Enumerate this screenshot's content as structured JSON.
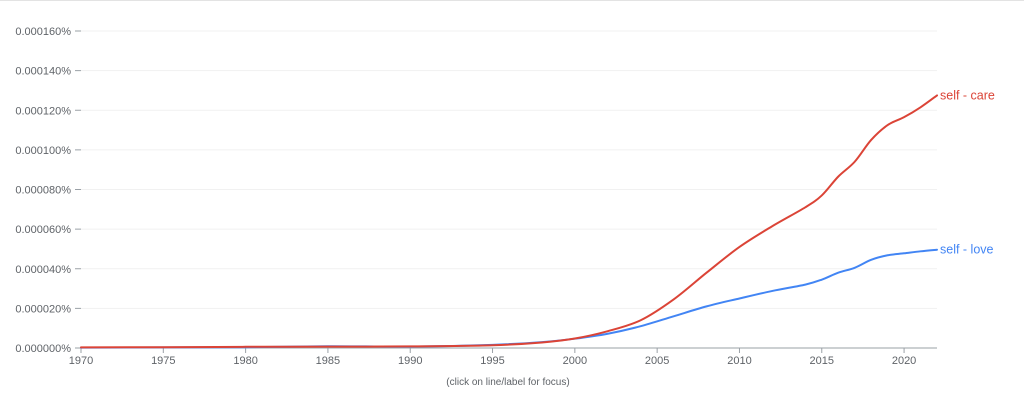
{
  "chart_data": {
    "type": "line",
    "xlim": [
      1970,
      2022
    ],
    "ylim": [
      0,
      0.00016
    ],
    "x_ticks": [
      1970,
      1975,
      1980,
      1985,
      1990,
      1995,
      2000,
      2005,
      2010,
      2015,
      2020
    ],
    "y_ticks": [
      0,
      2e-05,
      4e-05,
      6e-05,
      8e-05,
      0.0001,
      0.00012,
      0.00014,
      0.00016
    ],
    "y_tick_labels": [
      "0.000000%",
      "0.000020%",
      "0.000040%",
      "0.000060%",
      "0.000080%",
      "0.000100%",
      "0.000120%",
      "0.000140%",
      "0.000160%"
    ],
    "grid": true,
    "footnote": "(click on line/label for focus)",
    "series": [
      {
        "name": "self - care",
        "color": "#db4437",
        "x": [
          1970,
          1975,
          1980,
          1985,
          1990,
          1995,
          1998,
          2000,
          2002,
          2004,
          2006,
          2008,
          2010,
          2012,
          2014,
          2015,
          2016,
          2017,
          2018,
          2019,
          2020,
          2021,
          2022
        ],
        "values": [
          3e-07,
          4e-07,
          6e-07,
          7e-07,
          8e-07,
          1.4e-06,
          2.8e-06,
          4.8e-06,
          8.5e-06,
          1.4e-05,
          2.45e-05,
          3.8e-05,
          5.1e-05,
          6.15e-05,
          7.1e-05,
          7.7e-05,
          8.65e-05,
          9.4e-05,
          0.000105,
          0.0001125,
          0.0001165,
          0.0001215,
          0.0001275
        ]
      },
      {
        "name": "self - love",
        "color": "#4285f4",
        "x": [
          1970,
          1975,
          1980,
          1985,
          1990,
          1995,
          1998,
          2000,
          2002,
          2004,
          2006,
          2008,
          2010,
          2012,
          2014,
          2015,
          2016,
          2017,
          2018,
          2019,
          2020,
          2021,
          2022
        ],
        "values": [
          2e-07,
          3e-07,
          4e-07,
          9e-07,
          7e-07,
          1.6e-06,
          3e-06,
          4.7e-06,
          7.2e-06,
          1.1e-05,
          1.6e-05,
          2.1e-05,
          2.5e-05,
          2.88e-05,
          3.2e-05,
          3.45e-05,
          3.8e-05,
          4.05e-05,
          4.45e-05,
          4.68e-05,
          4.78e-05,
          4.88e-05,
          4.96e-05
        ]
      }
    ]
  }
}
